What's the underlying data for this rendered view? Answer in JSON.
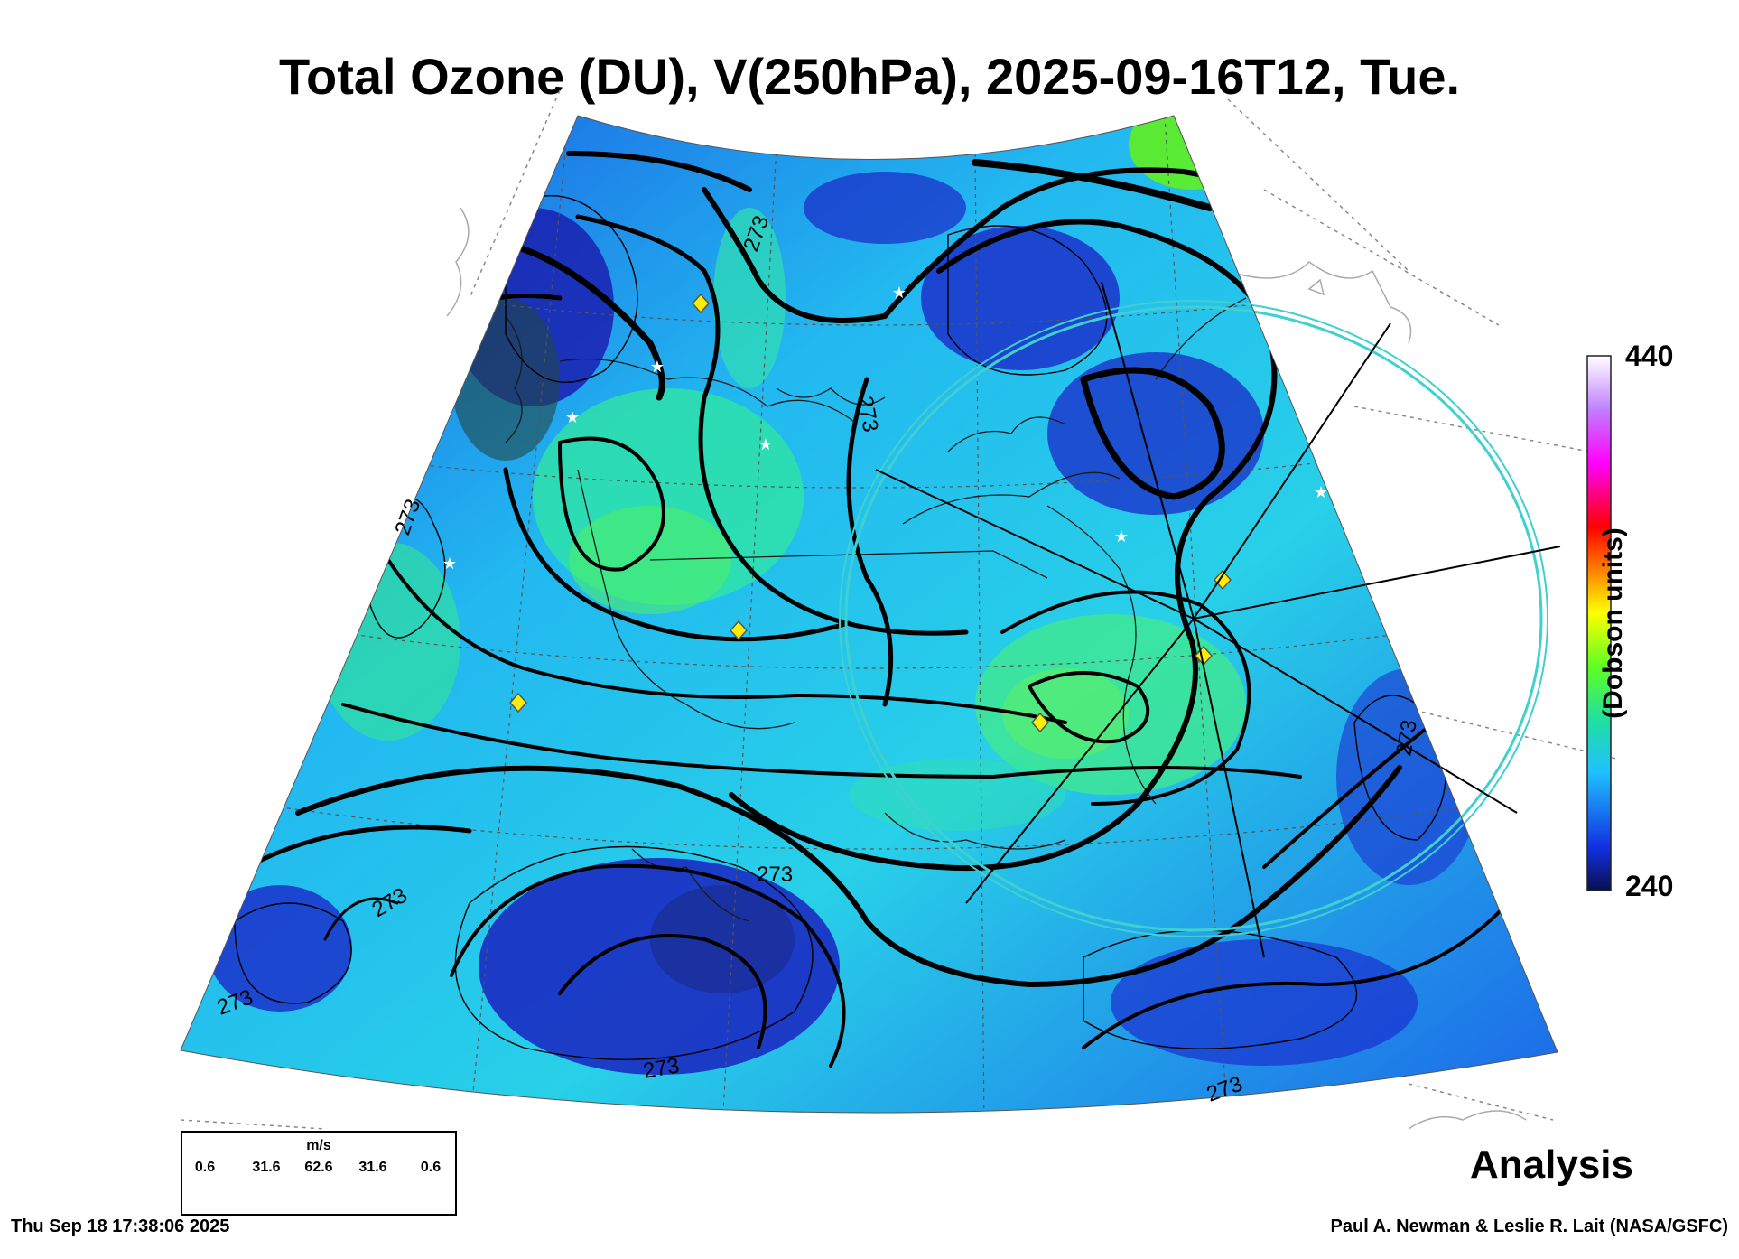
{
  "title": "Total Ozone (DU), V(250hPa), 2025-09-16T12, Tue.",
  "colorbar": {
    "max_label": "440",
    "min_label": "240",
    "units_label": "(Dobson units)",
    "colors": [
      "#0a1050",
      "#1030e0",
      "#20c0ff",
      "#20e0a0",
      "#60ff20",
      "#ffff00",
      "#ff8000",
      "#ff0000",
      "#ff00ff",
      "#c080ff",
      "#ffffff"
    ]
  },
  "contour_label": "273",
  "wind_legend": {
    "units": "m/s",
    "labels": [
      "0.6",
      "31.6",
      "62.6",
      "31.6",
      "0.6"
    ]
  },
  "analysis_label": "Analysis",
  "timestamp": "Thu Sep 18 17:38:06 2025",
  "credit": "Paul A. Newman & Leslie R. Lait (NASA/GSFC)",
  "markers": {
    "diamond_color": "#ffee00",
    "star_color": "#ffffff",
    "ring_color": "#40d0d0"
  }
}
